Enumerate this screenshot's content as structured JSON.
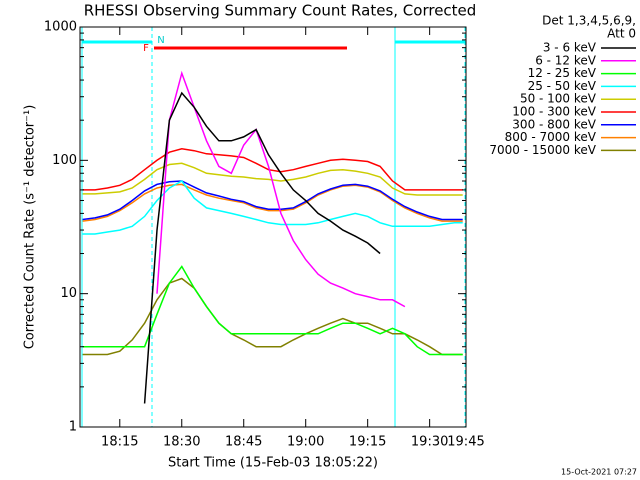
{
  "chart_data": {
    "type": "line",
    "title": "RHESSI Observing Summary Count Rates, Corrected",
    "xlabel": "Start Time (15-Feb-03 18:05:22)",
    "ylabel": "Corrected Count Rate (s⁻¹ detector⁻¹)",
    "log_y": true,
    "ylim": [
      1,
      1000
    ],
    "yticks": [
      1,
      10,
      100,
      1000
    ],
    "xlim": [
      5.37,
      98.8
    ],
    "xticks": [
      {
        "value": 15,
        "label": "18:15"
      },
      {
        "value": 30,
        "label": "18:30"
      },
      {
        "value": 45,
        "label": "18:45"
      },
      {
        "value": 60,
        "label": "19:00"
      },
      {
        "value": 75,
        "label": "19:15"
      },
      {
        "value": 90,
        "label": "19:30"
      },
      {
        "value": 98.8,
        "label": "19:45"
      }
    ],
    "annotations": [
      "Det 1,3,4,5,6,9,",
      "Att 0",
      "F",
      "N",
      "15-Oct-2021 07:27"
    ],
    "x": [
      6,
      9,
      12,
      15,
      18,
      21,
      24,
      27,
      30,
      33,
      36,
      39,
      42,
      45,
      48,
      51,
      54,
      57,
      60,
      63,
      66,
      69,
      72,
      75,
      78,
      81,
      84,
      87,
      90,
      93,
      96,
      98
    ],
    "series": [
      {
        "name": "3 - 6 keV",
        "color": "#000000",
        "values": [
          null,
          null,
          null,
          null,
          null,
          1.5,
          30,
          200,
          320,
          250,
          180,
          140,
          140,
          150,
          170,
          110,
          80,
          60,
          50,
          40,
          35,
          30,
          27,
          24,
          20,
          null,
          null,
          null,
          null,
          null,
          null,
          null
        ]
      },
      {
        "name": "6 - 12 keV",
        "color": "#ff00ff",
        "values": [
          null,
          null,
          null,
          null,
          null,
          null,
          10,
          200,
          450,
          250,
          140,
          90,
          80,
          130,
          170,
          90,
          40,
          25,
          18,
          14,
          12,
          11,
          10,
          9.5,
          9,
          9,
          8,
          null,
          null,
          null,
          null,
          null
        ]
      },
      {
        "name": "12 - 25 keV",
        "color": "#00ff00",
        "values": [
          4,
          4,
          4,
          4,
          4,
          4,
          7,
          12,
          16,
          11,
          8,
          6,
          5,
          5,
          5,
          5,
          5,
          5,
          5,
          5,
          5.5,
          6,
          6,
          5.5,
          5,
          5.5,
          5,
          4,
          3.5,
          3.5,
          3.5,
          3.5
        ]
      },
      {
        "name": "25 - 50 keV",
        "color": "#00ffff",
        "values": [
          28,
          28,
          29,
          30,
          32,
          38,
          50,
          62,
          70,
          52,
          44,
          42,
          40,
          38,
          36,
          34,
          33,
          33,
          33,
          34,
          36,
          38,
          40,
          38,
          34,
          32,
          32,
          32,
          32,
          33,
          34,
          34
        ]
      },
      {
        "name": "50 - 100 keV",
        "color": "#cccc00",
        "values": [
          56,
          56,
          57,
          58,
          62,
          72,
          85,
          93,
          95,
          88,
          80,
          78,
          76,
          75,
          73,
          72,
          70,
          72,
          75,
          80,
          84,
          85,
          83,
          80,
          75,
          62,
          56,
          55,
          55,
          55,
          55,
          55
        ]
      },
      {
        "name": "100 - 300 keV",
        "color": "#ff0000",
        "values": [
          60,
          60,
          62,
          65,
          72,
          85,
          100,
          115,
          122,
          118,
          112,
          110,
          108,
          105,
          95,
          85,
          82,
          85,
          90,
          95,
          100,
          102,
          100,
          98,
          90,
          70,
          60,
          60,
          60,
          60,
          60,
          60
        ]
      },
      {
        "name": "300 - 800 keV",
        "color": "#0000ff",
        "values": [
          36,
          37,
          39,
          43,
          50,
          59,
          66,
          69,
          70,
          63,
          57,
          54,
          51,
          49,
          45,
          43,
          43,
          44,
          49,
          56,
          61,
          65,
          66,
          64,
          59,
          51,
          45,
          41,
          38,
          36,
          36,
          36
        ]
      },
      {
        "name": "800 - 7000 keV",
        "color": "#ff8000",
        "values": [
          35,
          36,
          38,
          42,
          48,
          56,
          62,
          65,
          66,
          60,
          55,
          52,
          50,
          48,
          44,
          42,
          42,
          43,
          48,
          55,
          60,
          64,
          65,
          63,
          58,
          50,
          44,
          40,
          37,
          35,
          35,
          35
        ]
      },
      {
        "name": "7000 - 15000 keV",
        "color": "#808000",
        "values": [
          3.5,
          3.5,
          3.5,
          3.7,
          4.5,
          6,
          9,
          12,
          13,
          11,
          8,
          6,
          5,
          4.5,
          4,
          4,
          4,
          4.5,
          5,
          5.5,
          6,
          6.5,
          6,
          6,
          5.5,
          5,
          5,
          4.5,
          4,
          3.5,
          3.5,
          3.5
        ]
      }
    ]
  }
}
